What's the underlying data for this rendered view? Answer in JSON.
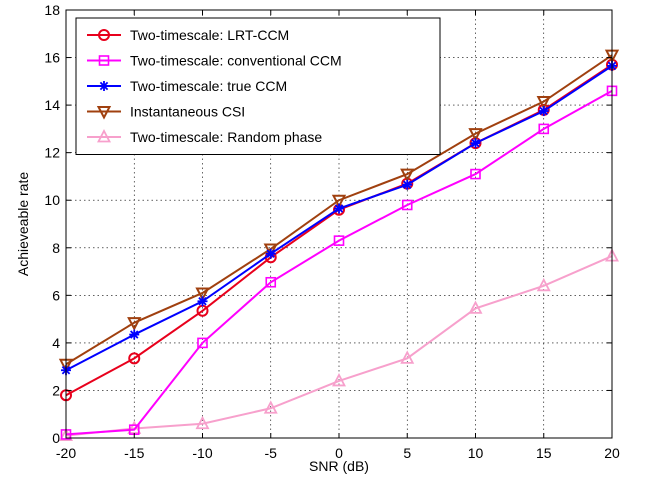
{
  "chart_data": {
    "type": "line",
    "xlabel": "SNR (dB)",
    "ylabel": "Achieveable rate",
    "xlim": [
      -20,
      20
    ],
    "ylim": [
      0,
      18
    ],
    "x": [
      -20,
      -15,
      -10,
      -5,
      0,
      5,
      10,
      15,
      20
    ],
    "xticks": [
      "-20",
      "-15",
      "-10",
      "-5",
      "0",
      "5",
      "10",
      "15",
      "20"
    ],
    "yticks": [
      "0",
      "2",
      "4",
      "6",
      "8",
      "10",
      "12",
      "14",
      "16",
      "18"
    ],
    "grid": true,
    "legend_position": "top-left",
    "series": [
      {
        "name": "Two-timescale: LRT-CCM",
        "color": "#e8001c",
        "marker": "circle",
        "values": [
          1.8,
          3.35,
          5.35,
          7.6,
          9.6,
          10.7,
          12.4,
          13.8,
          15.7
        ]
      },
      {
        "name": "Two-timescale: conventional CCM",
        "color": "#ff00ff",
        "marker": "square",
        "values": [
          0.15,
          0.35,
          4.0,
          6.55,
          8.3,
          9.8,
          11.1,
          13.0,
          14.6
        ]
      },
      {
        "name": "Two-timescale: true CCM",
        "color": "#0000ff",
        "marker": "star",
        "values": [
          2.85,
          4.35,
          5.75,
          7.75,
          9.65,
          10.65,
          12.4,
          13.75,
          15.65
        ]
      },
      {
        "name": "Instantaneous CSI",
        "color": "#a0400f",
        "marker": "triangle-down",
        "values": [
          3.1,
          4.85,
          6.1,
          7.95,
          10.0,
          11.1,
          12.8,
          14.15,
          16.1
        ]
      },
      {
        "name": "Two-timescale: Random phase",
        "color": "#f7a0cc",
        "marker": "triangle-up",
        "values": [
          0.1,
          0.4,
          0.6,
          1.25,
          2.4,
          3.35,
          5.45,
          6.4,
          7.65
        ]
      }
    ]
  }
}
